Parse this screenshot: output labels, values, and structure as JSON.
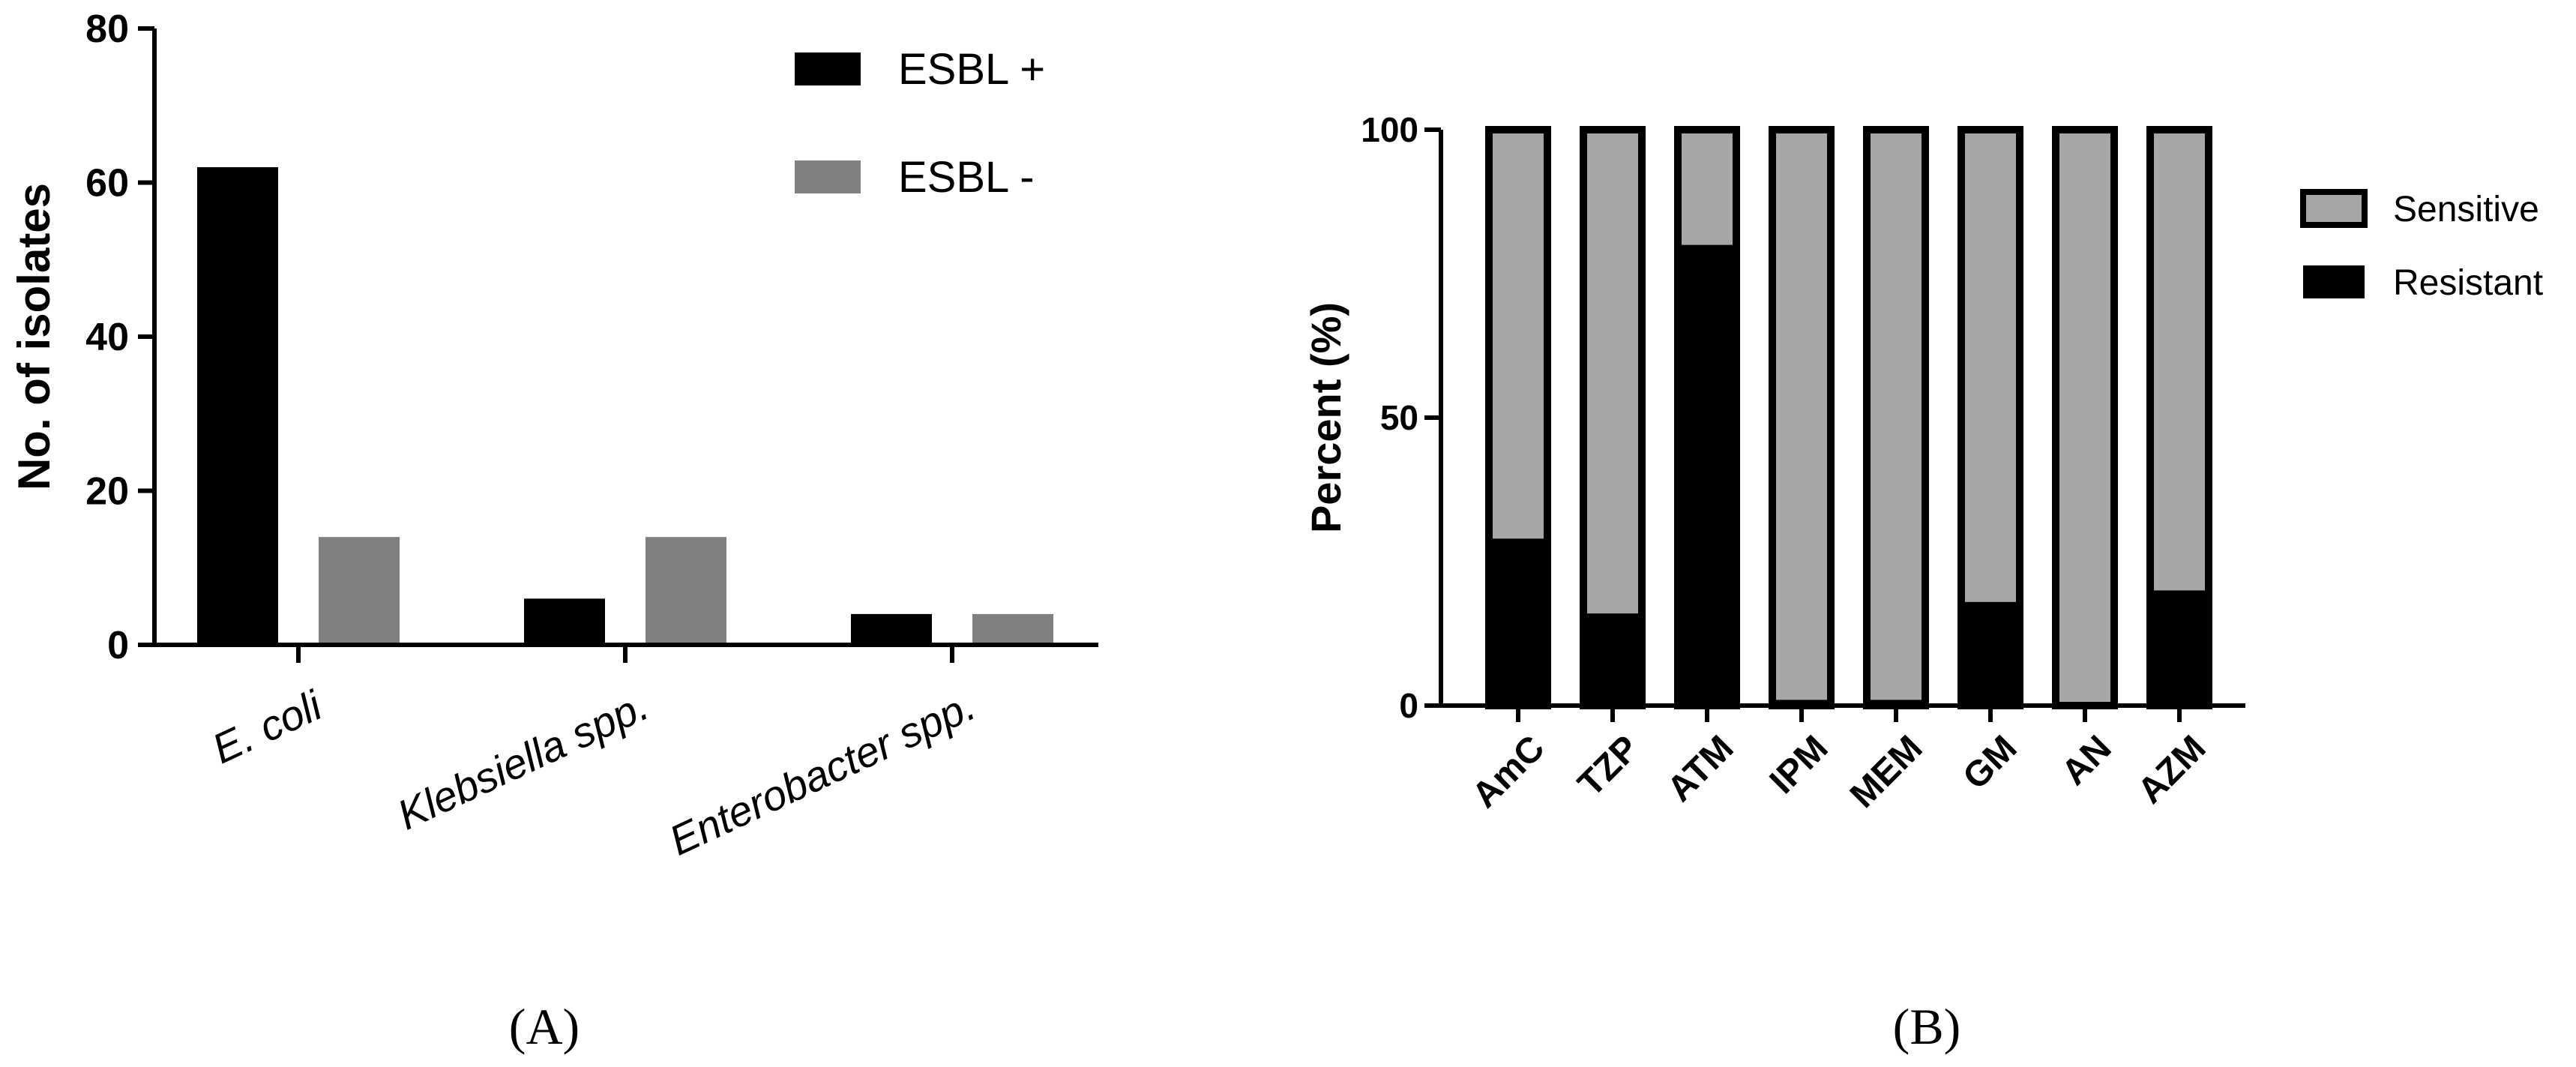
{
  "colors": {
    "esbl_pos": "#000000",
    "esbl_neg": "#808080",
    "sensitive": "#a6a6a8",
    "resistant": "#000000",
    "axis": "#000000"
  },
  "chart_data": [
    {
      "id": "A",
      "type": "bar",
      "panel_label": "(A)",
      "ylabel": "No. of isolates",
      "xlabel": "",
      "ylim": [
        0,
        80
      ],
      "yticks": [
        "0",
        "20",
        "40",
        "60",
        "80"
      ],
      "yticks_values": [
        0,
        20,
        40,
        60,
        80
      ],
      "categories": [
        "E. coli",
        "Klebsiella spp.",
        "Enterobacter spp."
      ],
      "series": [
        {
          "name": "ESBL +",
          "values": [
            62,
            6,
            4
          ]
        },
        {
          "name": "ESBL -",
          "values": [
            14,
            14,
            4
          ]
        }
      ],
      "legend_position": "top-right",
      "grid": false
    },
    {
      "id": "B",
      "type": "bar",
      "stacked": true,
      "panel_label": "(B)",
      "ylabel": "Percent (%)",
      "xlabel": "",
      "ylim": [
        0,
        100
      ],
      "yticks": [
        "0",
        "50",
        "100"
      ],
      "yticks_values": [
        0,
        50,
        100
      ],
      "categories": [
        "AmC",
        "TZP",
        "ATM",
        "IPM",
        "MEM",
        "GM",
        "AN",
        "AZM"
      ],
      "series": [
        {
          "name": "Resistant",
          "values": [
            29,
            16,
            80,
            1,
            1,
            18,
            0,
            20
          ]
        },
        {
          "name": "Sensitive",
          "values": [
            71,
            84,
            20,
            99,
            99,
            82,
            100,
            80
          ]
        }
      ],
      "legend_order": [
        "Sensitive",
        "Resistant"
      ],
      "legend_position": "right",
      "grid": false
    }
  ]
}
